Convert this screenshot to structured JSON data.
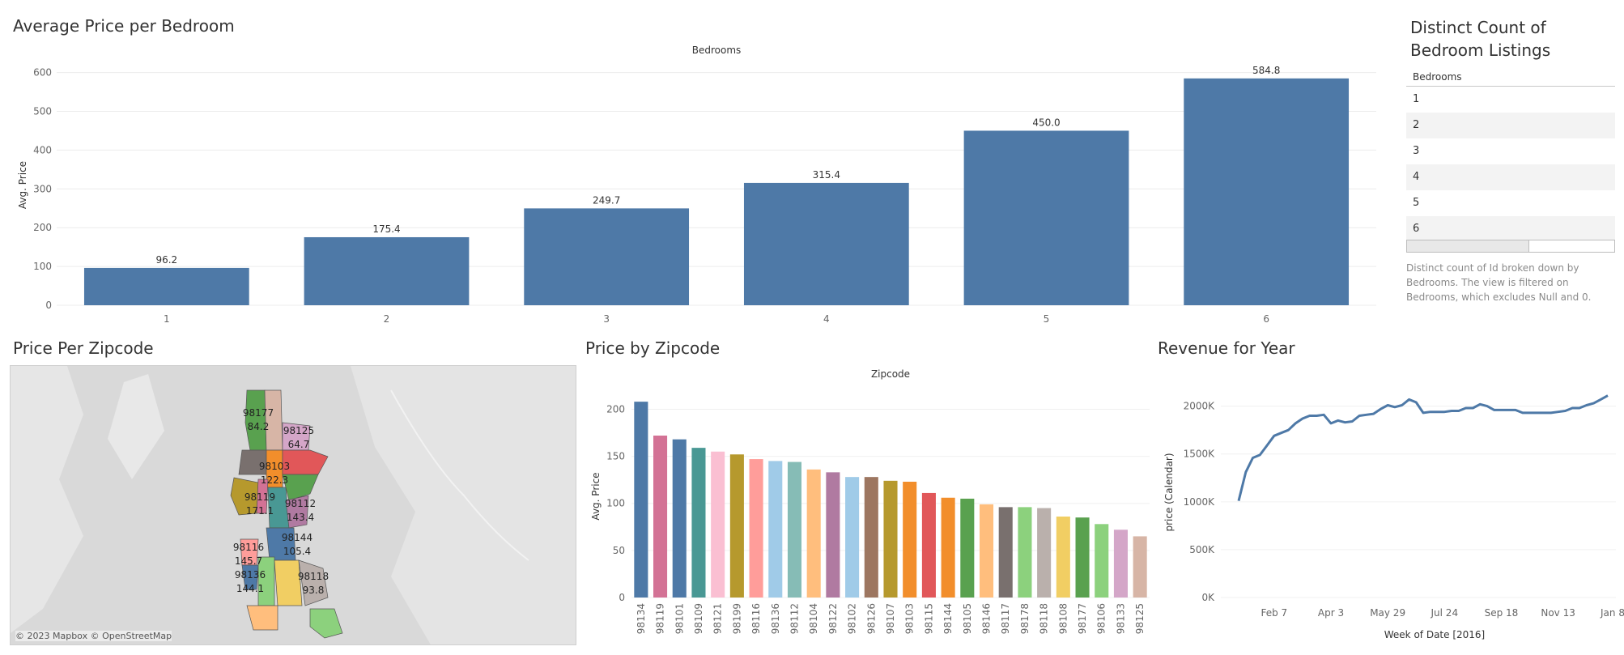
{
  "dashboard": {
    "panel1_title": "Average Price per Bedroom",
    "panel2_title": "Distinct Count of Bedroom Listings",
    "panel3_title": "Price Per Zipcode",
    "panel4_title": "Price by Zipcode",
    "panel5_title": "Revenue for Year"
  },
  "bedrooms_table": {
    "header": "Bedrooms",
    "rows": [
      "1",
      "2",
      "3",
      "4",
      "5",
      "6"
    ],
    "caption": "Distinct count of Id broken down by Bedrooms. The view is filtered on Bedrooms, which excludes Null and 0."
  },
  "map": {
    "attribution": "© 2023 Mapbox © OpenStreetMap",
    "labels": [
      {
        "zip": "98177",
        "value": "84.2"
      },
      {
        "zip": "98125",
        "value": "64.7"
      },
      {
        "zip": "98103",
        "value": "122.3"
      },
      {
        "zip": "98119",
        "value": "171.1"
      },
      {
        "zip": "98112",
        "value": "143.4"
      },
      {
        "zip": "98144",
        "value": "105.4"
      },
      {
        "zip": "98116",
        "value": "145.7"
      },
      {
        "zip": "98136",
        "value": "144.1"
      },
      {
        "zip": "98118",
        "value": "93.8"
      }
    ]
  },
  "chart_data": [
    {
      "type": "bar",
      "title": "Average Price per Bedroom",
      "column_header": "Bedrooms",
      "ylabel": "Avg. Price",
      "categories": [
        "1",
        "2",
        "3",
        "4",
        "5",
        "6"
      ],
      "values": [
        96.2,
        175.4,
        249.7,
        315.4,
        450.0,
        584.8
      ],
      "data_labels": [
        "96.2",
        "175.4",
        "249.7",
        "315.4",
        "450.0",
        "584.8"
      ],
      "yticks": [
        "0",
        "100",
        "200",
        "300",
        "400",
        "500",
        "600"
      ],
      "ylim": [
        0,
        620
      ],
      "color": "#4e79a7"
    },
    {
      "type": "bar",
      "title": "Price by Zipcode",
      "column_header": "Zipcode",
      "ylabel": "Avg. Price",
      "categories": [
        "98134",
        "98119",
        "98101",
        "98109",
        "98121",
        "98199",
        "98116",
        "98136",
        "98112",
        "98104",
        "98122",
        "98102",
        "98126",
        "98107",
        "98103",
        "98115",
        "98144",
        "98105",
        "98146",
        "98117",
        "98178",
        "98118",
        "98108",
        "98177",
        "98106",
        "98133",
        "98125"
      ],
      "values": [
        208,
        172,
        168,
        159,
        155,
        152,
        147,
        145,
        144,
        136,
        133,
        128,
        128,
        124,
        123,
        111,
        106,
        105,
        99,
        96,
        96,
        95,
        86,
        85,
        78,
        72,
        65
      ],
      "colors": [
        "#4e79a7",
        "#d37295",
        "#4e79a7",
        "#499894",
        "#fabfd2",
        "#b6992d",
        "#ff9d9a",
        "#a0cbe8",
        "#86bcb6",
        "#ffbe7d",
        "#b07aa1",
        "#a0cbe8",
        "#9d7660",
        "#b6992d",
        "#f28e2b",
        "#e15759",
        "#f28e2b",
        "#59a14f",
        "#ffbe7d",
        "#79706e",
        "#8cd17d",
        "#bab0ac",
        "#f1ce63",
        "#59a14f",
        "#8cd17d",
        "#d4a6c8",
        "#d7b5a6"
      ],
      "yticks": [
        "0",
        "50",
        "100",
        "150",
        "200"
      ],
      "ylim": [
        0,
        215
      ]
    },
    {
      "type": "line",
      "title": "Revenue for Year",
      "ylabel": "price (Calendar)",
      "xlabel": "Week of Date [2016]",
      "xticks": [
        "Feb 7",
        "Apr 3",
        "May 29",
        "Jul 24",
        "Sep 18",
        "Nov 13",
        "Jan 8"
      ],
      "yticks": [
        "0K",
        "500K",
        "1000K",
        "1500K",
        "2000K"
      ],
      "ylim": [
        0,
        2200000
      ],
      "x_weeks": [
        0,
        1,
        2,
        3,
        4,
        5,
        6,
        7,
        8,
        9,
        10,
        11,
        12,
        13,
        14,
        15,
        16,
        17,
        18,
        19,
        20,
        21,
        22,
        23,
        24,
        25,
        26,
        27,
        28,
        29,
        30,
        31,
        32,
        33,
        34,
        35,
        36,
        37,
        38,
        39,
        40,
        41,
        42,
        43,
        44,
        45,
        46,
        47,
        48,
        49,
        50,
        51,
        52
      ],
      "values": [
        1010000,
        1310000,
        1460000,
        1490000,
        1590000,
        1690000,
        1720000,
        1750000,
        1820000,
        1870000,
        1900000,
        1900000,
        1910000,
        1820000,
        1850000,
        1830000,
        1840000,
        1900000,
        1910000,
        1920000,
        1970000,
        2010000,
        1990000,
        2010000,
        2070000,
        2040000,
        1930000,
        1940000,
        1940000,
        1940000,
        1950000,
        1950000,
        1980000,
        1980000,
        2020000,
        2000000,
        1960000,
        1960000,
        1960000,
        1960000,
        1930000,
        1930000,
        1930000,
        1930000,
        1930000,
        1940000,
        1950000,
        1980000,
        1980000,
        2010000,
        2030000,
        2070000,
        2110000
      ],
      "color": "#4e79a7"
    }
  ]
}
